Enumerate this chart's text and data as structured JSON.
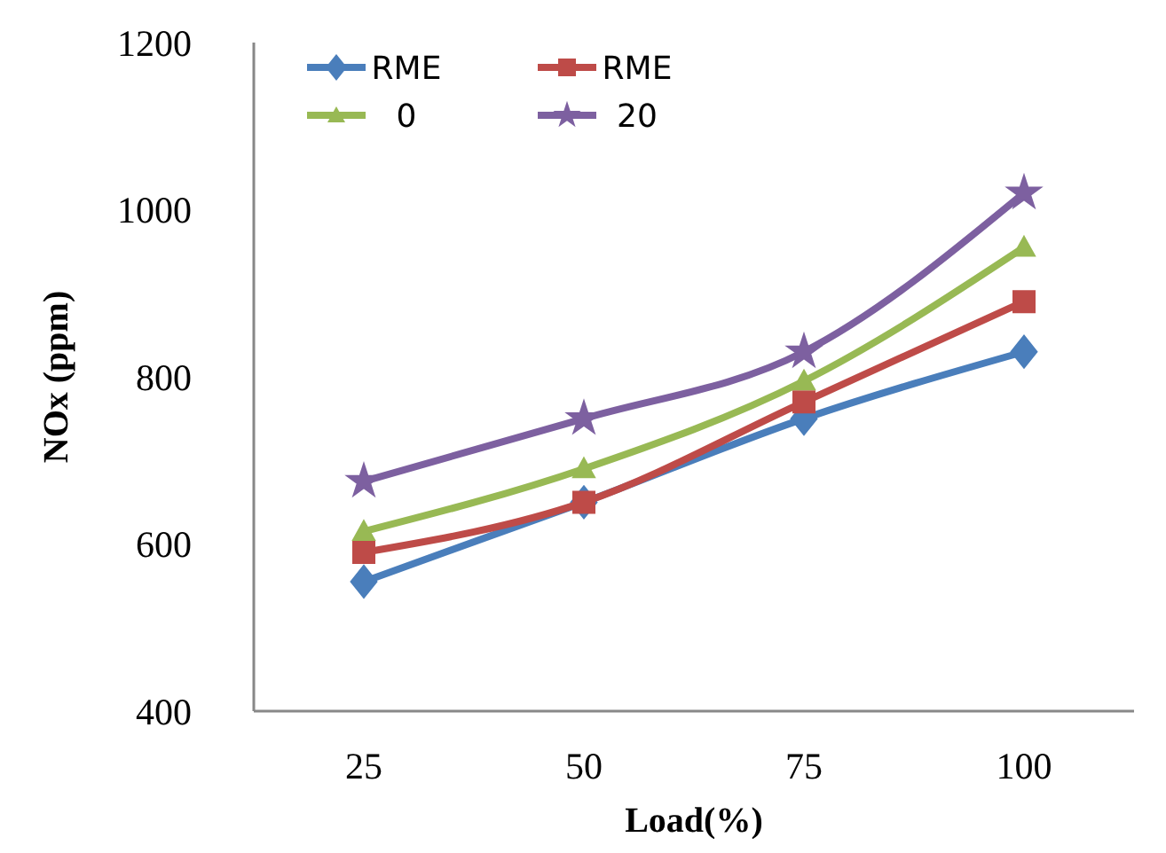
{
  "chart_data": {
    "type": "line",
    "xlabel": "Load(%)",
    "ylabel": "NOx (ppm)",
    "categories": [
      "25",
      "50",
      "75",
      "100"
    ],
    "ylim": [
      400,
      1200
    ],
    "yticks": [
      400,
      600,
      800,
      1000,
      1200
    ],
    "grid": false,
    "legend": "top left",
    "series": [
      {
        "name": "RME",
        "color": "#4a7ebb",
        "marker": "diamond",
        "values": [
          555,
          650,
          750,
          830
        ]
      },
      {
        "name": "RME",
        "color": "#be4b48",
        "marker": "square",
        "values": [
          590,
          650,
          770,
          890
        ]
      },
      {
        "name": "0",
        "color": "#98b954",
        "marker": "triangle",
        "values": [
          615,
          690,
          795,
          955
        ]
      },
      {
        "name": "20",
        "color": "#7d60a0",
        "marker": "star",
        "values": [
          675,
          750,
          830,
          1020
        ]
      }
    ]
  }
}
